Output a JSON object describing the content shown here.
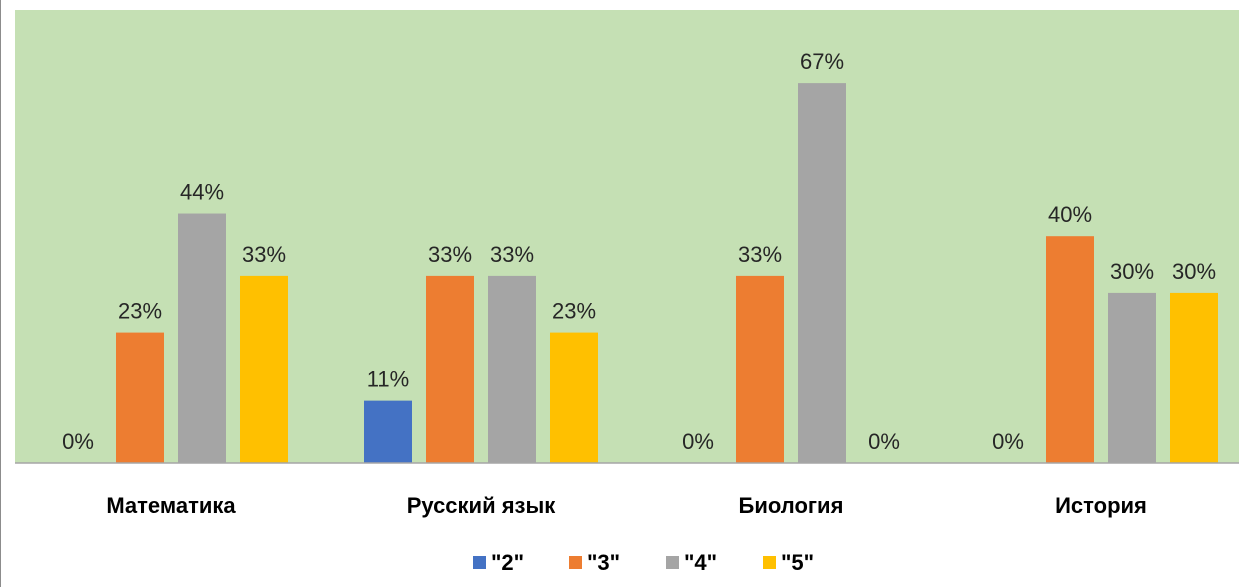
{
  "chart_data": {
    "type": "bar",
    "title": "",
    "xlabel": "",
    "ylabel": "",
    "categories": [
      "Математика",
      "Русский язык",
      "Биология",
      "История"
    ],
    "series": [
      {
        "name": "\"2\"",
        "color": "#4472C4",
        "values": [
          0,
          11,
          0,
          0
        ],
        "labels": [
          "0%",
          "11%",
          "0%",
          "0%"
        ]
      },
      {
        "name": "\"3\"",
        "color": "#ED7D31",
        "values": [
          23,
          33,
          33,
          40
        ],
        "labels": [
          "23%",
          "33%",
          "33%",
          "40%"
        ]
      },
      {
        "name": "\"4\"",
        "color": "#A5A5A5",
        "values": [
          44,
          33,
          67,
          30
        ],
        "labels": [
          "44%",
          "33%",
          "67%",
          "30%"
        ]
      },
      {
        "name": "\"5\"",
        "color": "#FFC000",
        "values": [
          33,
          23,
          0,
          30
        ],
        "labels": [
          "33%",
          "23%",
          "0%",
          "30%"
        ]
      }
    ],
    "ylim": [
      0,
      80
    ],
    "value_unit": "%",
    "grid": false,
    "legend_position": "bottom",
    "plot_background": "#C5E0B4",
    "axis_line_color": "#A6A6A6"
  }
}
